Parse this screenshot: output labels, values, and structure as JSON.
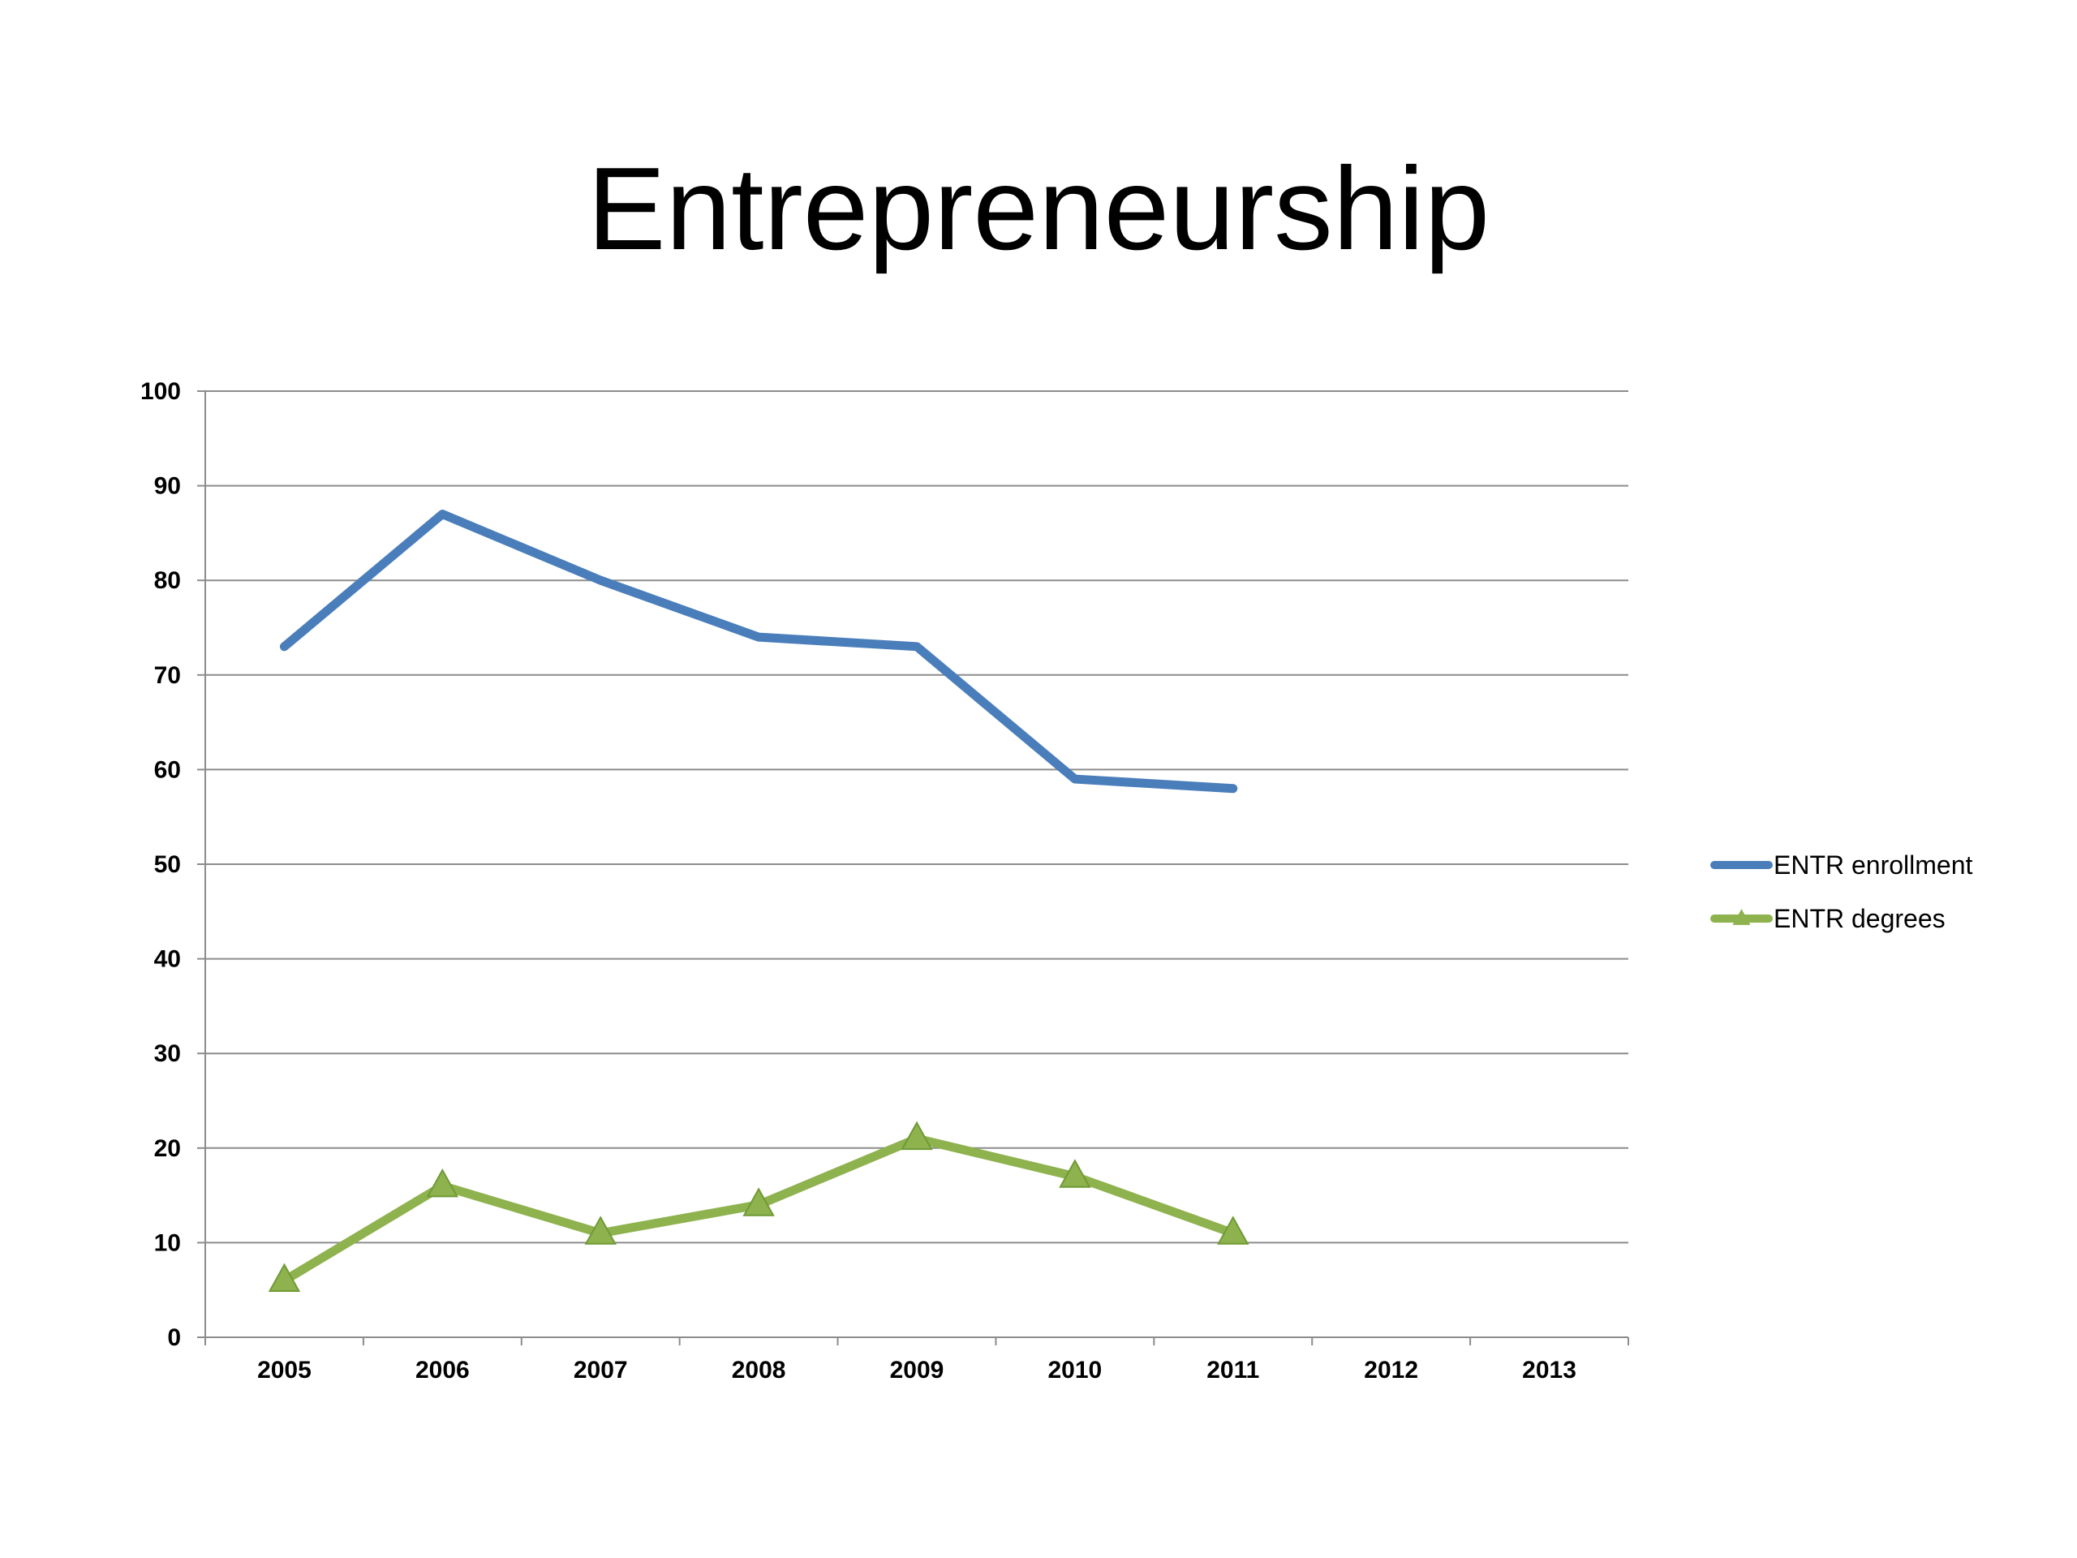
{
  "chart_data": {
    "type": "line",
    "title": "Entrepreneurship",
    "categories": [
      "2005",
      "2006",
      "2007",
      "2008",
      "2009",
      "2010",
      "2011",
      "2012",
      "2013"
    ],
    "series": [
      {
        "name": "ENTR enrollment",
        "color": "#4a7ebb",
        "marker": "none",
        "values": [
          73,
          87,
          80,
          74,
          73,
          59,
          58,
          null,
          null
        ]
      },
      {
        "name": "ENTR degrees",
        "color": "#8db24e",
        "marker": "triangle",
        "values": [
          6,
          16,
          11,
          14,
          21,
          17,
          11,
          null,
          null
        ]
      }
    ],
    "ylim": [
      0,
      100
    ],
    "yticks": [
      0,
      10,
      20,
      30,
      40,
      50,
      60,
      70,
      80,
      90,
      100
    ],
    "xlabel": "",
    "ylabel": "",
    "grid": "horizontal",
    "legend_position": "right"
  }
}
